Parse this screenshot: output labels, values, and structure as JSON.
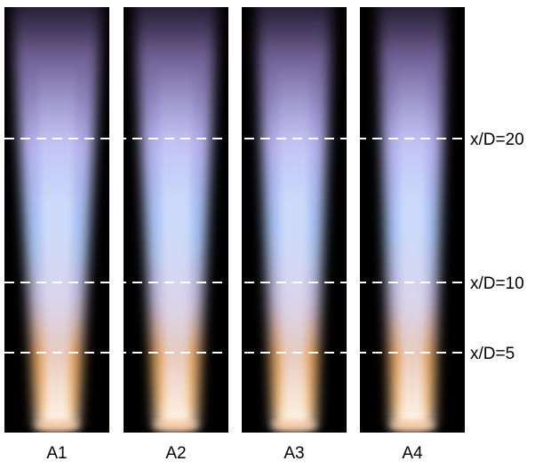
{
  "panels": [
    {
      "label": "A1"
    },
    {
      "label": "A2"
    },
    {
      "label": "A3"
    },
    {
      "label": "A4"
    }
  ],
  "stations": [
    {
      "label": "x/D=20"
    },
    {
      "label": "x/D=10"
    },
    {
      "label": "x/D=5"
    }
  ]
}
